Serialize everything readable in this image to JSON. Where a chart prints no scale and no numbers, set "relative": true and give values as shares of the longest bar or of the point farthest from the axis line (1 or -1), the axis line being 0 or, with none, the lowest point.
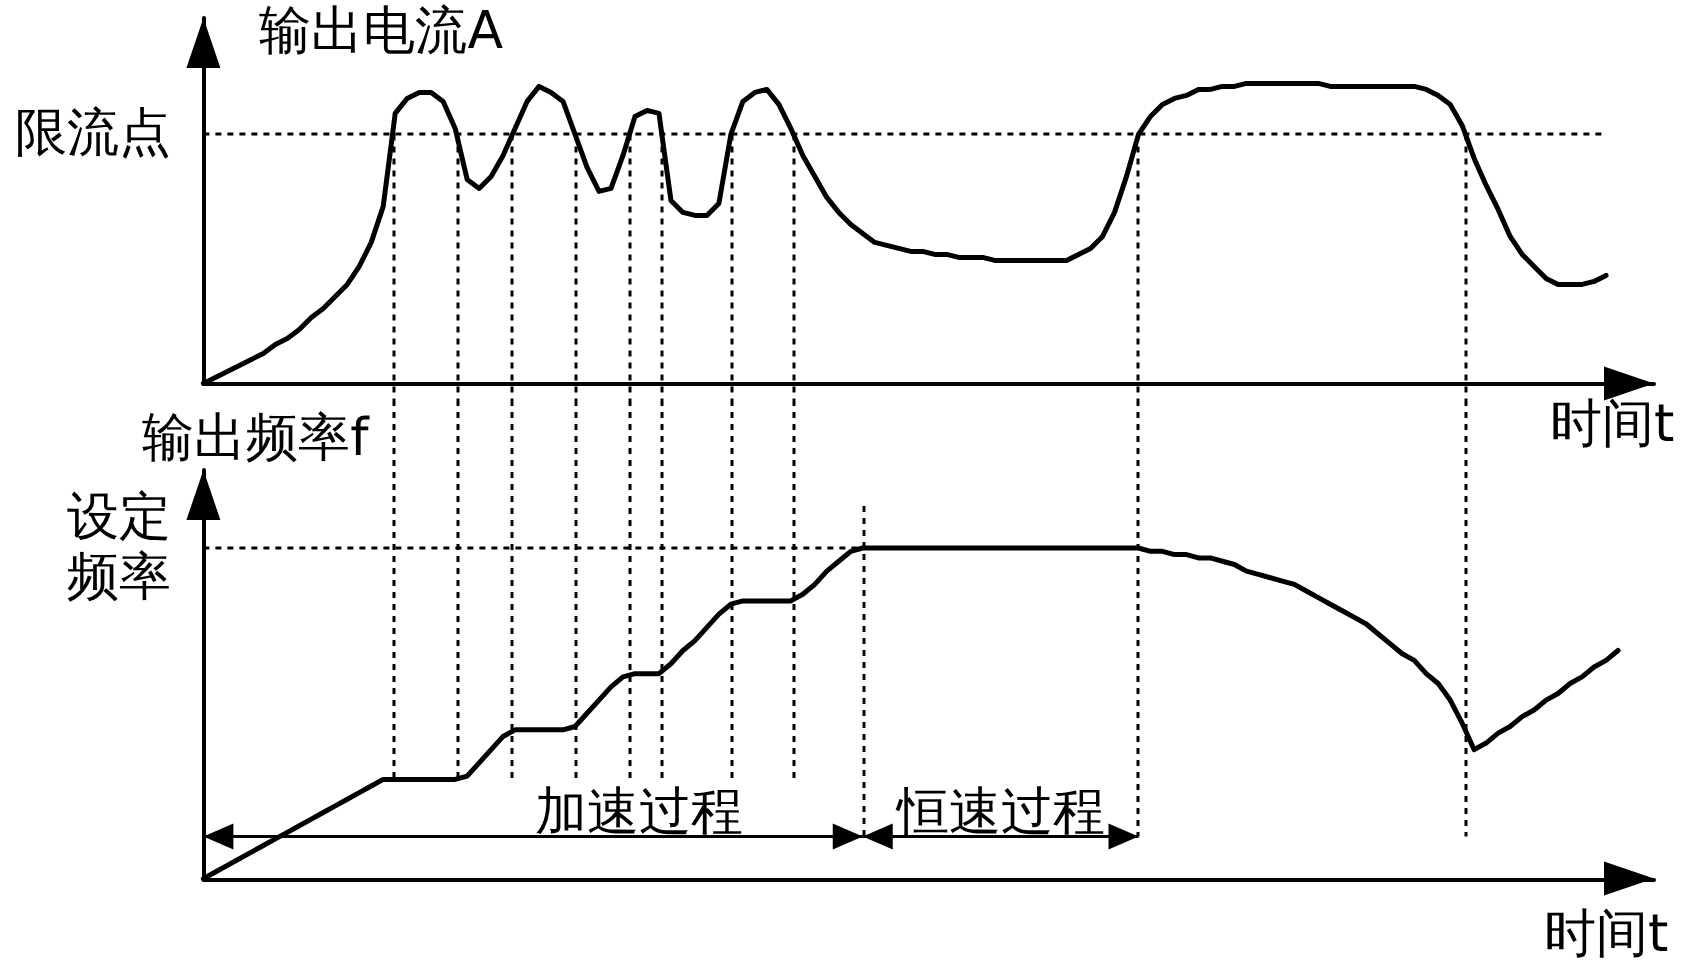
{
  "chart_data": [
    {
      "type": "line",
      "relative": true,
      "ylabel": "输出电流A",
      "xlabel": "时间t",
      "color": "#000000",
      "categories": [
        null,
        null,
        null,
        null,
        null,
        null,
        null,
        null,
        null,
        null,
        null,
        null,
        null,
        null,
        null,
        null,
        null,
        null,
        null,
        null,
        null,
        null,
        null,
        null,
        null,
        null,
        null,
        null,
        null,
        null,
        null,
        null,
        null,
        null,
        null,
        null,
        null,
        null,
        null,
        null,
        null,
        null,
        null,
        null,
        null,
        null,
        null,
        null,
        null,
        null,
        null,
        null,
        null,
        null,
        null,
        null,
        null,
        null,
        null,
        null,
        null,
        null,
        null,
        null,
        null,
        null,
        null,
        null,
        null,
        null,
        null,
        null,
        null,
        null,
        null,
        null,
        null,
        null,
        null,
        null,
        null,
        null,
        null,
        null,
        null,
        null,
        null,
        null,
        null,
        null,
        null,
        null,
        null,
        null,
        null,
        null,
        null,
        null,
        null,
        null,
        null,
        null,
        null,
        null,
        null,
        null,
        null,
        null,
        null,
        null,
        null,
        null,
        null,
        null,
        null,
        null,
        null,
        null,
        null,
        null,
        null,
        null
      ],
      "values": [
        0,
        0.02,
        0.04,
        0.06,
        0.08,
        0.1,
        0.13,
        0.15,
        0.18,
        0.22,
        0.25,
        0.29,
        0.33,
        0.39,
        0.47,
        0.59,
        0.9,
        0.95,
        0.97,
        0.97,
        0.94,
        0.85,
        0.68,
        0.65,
        0.69,
        0.76,
        0.85,
        0.94,
        0.99,
        0.97,
        0.94,
        0.83,
        0.72,
        0.64,
        0.65,
        0.76,
        0.89,
        0.91,
        0.9,
        0.61,
        0.57,
        0.56,
        0.56,
        0.6,
        0.83,
        0.94,
        0.97,
        0.98,
        0.93,
        0.85,
        0.76,
        0.69,
        0.62,
        0.57,
        0.53,
        0.5,
        0.47,
        0.46,
        0.45,
        0.44,
        0.44,
        0.43,
        0.43,
        0.42,
        0.42,
        0.42,
        0.41,
        0.41,
        0.41,
        0.41,
        0.41,
        0.41,
        0.41,
        0.43,
        0.45,
        0.49,
        0.57,
        0.69,
        0.83,
        0.89,
        0.93,
        0.95,
        0.96,
        0.98,
        0.98,
        0.99,
        0.99,
        1,
        1,
        1,
        1,
        1,
        1,
        1,
        0.99,
        0.99,
        0.99,
        0.99,
        0.99,
        0.99,
        0.99,
        0.99,
        0.98,
        0.96,
        0.93,
        0.86,
        0.75,
        0.66,
        0.58,
        0.49,
        0.43,
        0.39,
        0.35,
        0.33,
        0.33,
        0.33,
        0.34,
        0.36,
        null,
        null,
        null,
        null
      ],
      "ref_lines": [
        {
          "axis": "y",
          "value": 0.83,
          "label": "限流点",
          "line_style": "dotted"
        }
      ]
    },
    {
      "type": "line",
      "relative": true,
      "ylabel": "输出频率f",
      "xlabel": "时间t",
      "color": "#000000",
      "categories": [
        null,
        null,
        null,
        null,
        null,
        null,
        null,
        null,
        null,
        null,
        null,
        null,
        null,
        null,
        null,
        null,
        null,
        null,
        null,
        null,
        null,
        null,
        null,
        null,
        null,
        null,
        null,
        null,
        null,
        null,
        null,
        null,
        null,
        null,
        null,
        null,
        null,
        null,
        null,
        null,
        null,
        null,
        null,
        null,
        null,
        null,
        null,
        null,
        null,
        null,
        null,
        null,
        null,
        null,
        null,
        null,
        null,
        null,
        null,
        null,
        null,
        null,
        null,
        null,
        null,
        null,
        null,
        null,
        null,
        null,
        null,
        null,
        null,
        null,
        null,
        null,
        null,
        null,
        null,
        null,
        null,
        null,
        null,
        null,
        null,
        null,
        null,
        null,
        null,
        null,
        null,
        null,
        null,
        null,
        null,
        null,
        null,
        null,
        null,
        null,
        null,
        null,
        null,
        null,
        null,
        null,
        null,
        null,
        null,
        null,
        null,
        null,
        null,
        null,
        null,
        null,
        null,
        null,
        null,
        null,
        null,
        null
      ],
      "values": [
        0,
        0.02,
        0.04,
        0.06,
        0.08,
        0.1,
        0.12,
        0.14,
        0.16,
        0.18,
        0.2,
        0.22,
        0.24,
        0.26,
        0.28,
        0.3,
        0.3,
        0.3,
        0.3,
        0.3,
        0.3,
        0.3,
        0.31,
        0.35,
        0.39,
        0.43,
        0.45,
        0.45,
        0.45,
        0.45,
        0.45,
        0.46,
        0.5,
        0.54,
        0.58,
        0.61,
        0.62,
        0.62,
        0.62,
        0.65,
        0.69,
        0.72,
        0.76,
        0.8,
        0.83,
        0.84,
        0.84,
        0.84,
        0.84,
        0.84,
        0.86,
        0.89,
        0.93,
        0.96,
        0.99,
        1,
        1,
        1,
        1,
        1,
        1,
        1,
        1,
        1,
        1,
        1,
        1,
        1,
        1,
        1,
        1,
        1,
        1,
        1,
        1,
        1,
        1,
        1,
        1,
        0.99,
        0.99,
        0.98,
        0.98,
        0.97,
        0.97,
        0.96,
        0.95,
        0.93,
        0.92,
        0.91,
        0.9,
        0.89,
        0.87,
        0.85,
        0.83,
        0.81,
        0.79,
        0.77,
        0.74,
        0.71,
        0.68,
        0.66,
        0.62,
        0.59,
        0.54,
        0.47,
        0.39,
        0.41,
        0.44,
        0.46,
        0.49,
        0.51,
        0.54,
        0.56,
        0.59,
        0.61,
        0.64,
        0.66,
        0.69,
        null,
        null,
        null
      ],
      "ref_lines": [
        {
          "axis": "y",
          "value": 1,
          "label": "设定频率",
          "line_style": "dotted"
        }
      ],
      "annotations": [
        "加速过程",
        "恒速过程"
      ]
    }
  ]
}
